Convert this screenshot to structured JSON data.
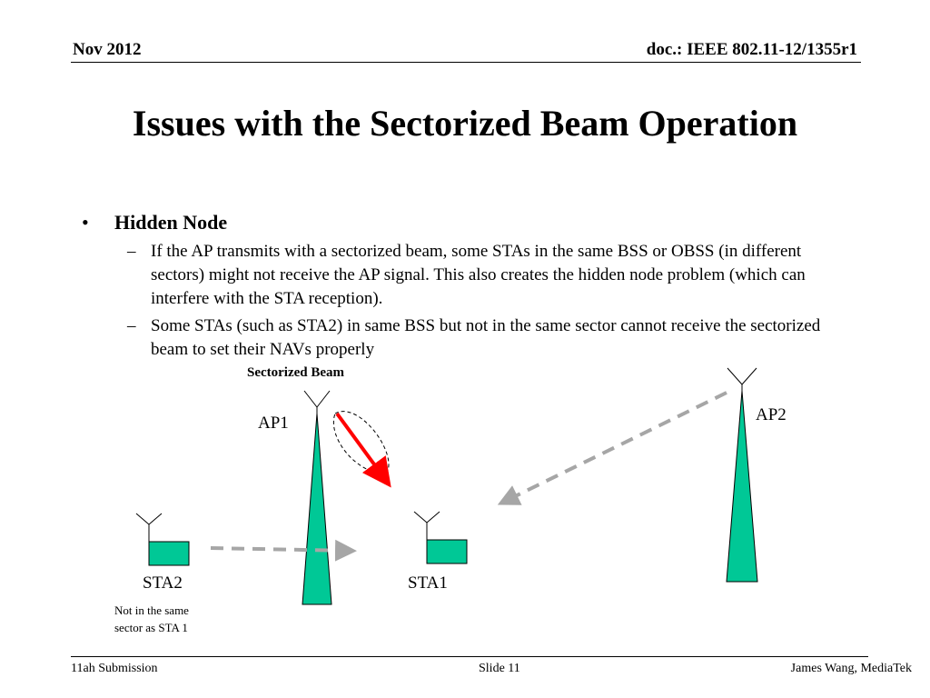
{
  "header": {
    "date": "Nov 2012",
    "doc": "doc.: IEEE 802.11-12/1355r1"
  },
  "title": "Issues with the Sectorized Beam Operation",
  "bullets": [
    {
      "text": "Hidden Node",
      "sub": [
        "If the AP transmits with a sectorized beam, some STAs in the same BSS or OBSS (in different sectors) might not receive the AP signal. This also creates the hidden node problem (which can interfere with the STA reception).",
        "Some STAs (such as STA2) in same BSS but not in the same sector cannot receive the sectorized beam to set their NAVs properly"
      ]
    }
  ],
  "diagram": {
    "beam_label": "Sectorized Beam",
    "ap1": "AP1",
    "ap2": "AP2",
    "sta1": "STA1",
    "sta2": "STA2",
    "note_line1": "Not in the same",
    "note_line2": "sector as STA 1",
    "colors": {
      "tower": "#00c896",
      "beam_arrow": "#ff0000",
      "dashed_arrow": "#a6a6a6"
    }
  },
  "footer": {
    "left": "11ah Submission",
    "middle": "Slide 11",
    "right": "James Wang, MediaTek"
  }
}
